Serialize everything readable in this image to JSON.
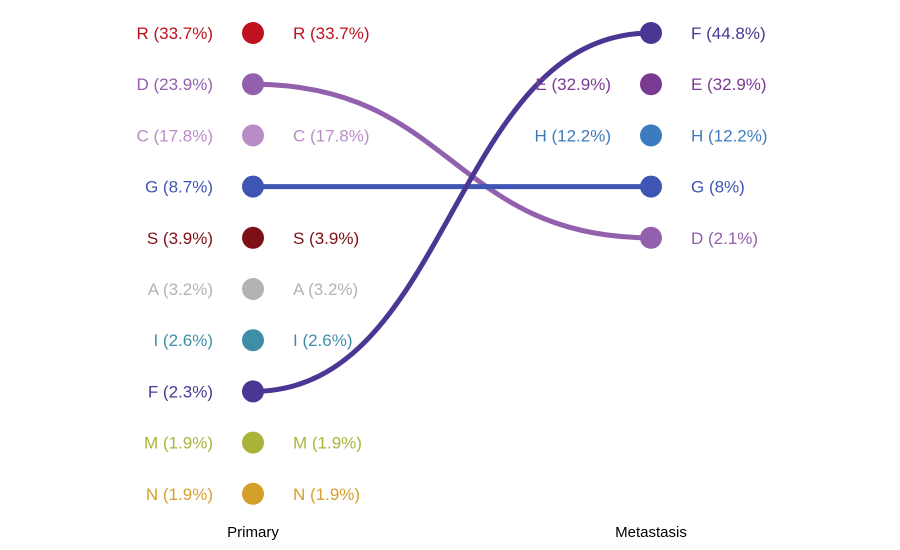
{
  "chart_data": {
    "type": "bump",
    "columns": [
      "Primary",
      "Metastasis"
    ],
    "primary": [
      {
        "key": "R",
        "label": "R (33.7%)",
        "value": 33.7,
        "color": "#c0111f"
      },
      {
        "key": "D",
        "label": "D (23.9%)",
        "value": 23.9,
        "color": "#9260ad"
      },
      {
        "key": "C",
        "label": "C (17.8%)",
        "value": 17.8,
        "color": "#b98cc8"
      },
      {
        "key": "G",
        "label": "G (8.7%)",
        "value": 8.7,
        "color": "#3f55b4"
      },
      {
        "key": "S",
        "label": "S (3.9%)",
        "value": 3.9,
        "color": "#7d1016"
      },
      {
        "key": "A",
        "label": "A (3.2%)",
        "value": 3.2,
        "color": "#b3b3b3"
      },
      {
        "key": "I",
        "label": "I (2.6%)",
        "value": 2.6,
        "color": "#3f8ea8"
      },
      {
        "key": "F",
        "label": "F (2.3%)",
        "value": 2.3,
        "color": "#4b3694"
      },
      {
        "key": "M",
        "label": "M (1.9%)",
        "value": 1.9,
        "color": "#aab43b"
      },
      {
        "key": "N",
        "label": "N (1.9%)",
        "value": 1.9,
        "color": "#d4a02c"
      }
    ],
    "metastasis": [
      {
        "key": "F",
        "label": "F (44.8%)",
        "value": 44.8,
        "color": "#4b3694"
      },
      {
        "key": "E",
        "label": "E (32.9%)",
        "value": 32.9,
        "color": "#7b3a91"
      },
      {
        "key": "H",
        "label": "H (12.2%)",
        "value": 12.2,
        "color": "#3c7bbf"
      },
      {
        "key": "G",
        "label": "G (8%)",
        "value": 8.0,
        "color": "#3f55b4"
      },
      {
        "key": "D",
        "label": "D (2.1%)",
        "value": 2.1,
        "color": "#9260ad"
      }
    ],
    "connections": [
      {
        "key": "D",
        "color": "#9260ad"
      },
      {
        "key": "G",
        "color": "#3f55b4"
      },
      {
        "key": "F",
        "color": "#4b3694"
      }
    ]
  }
}
